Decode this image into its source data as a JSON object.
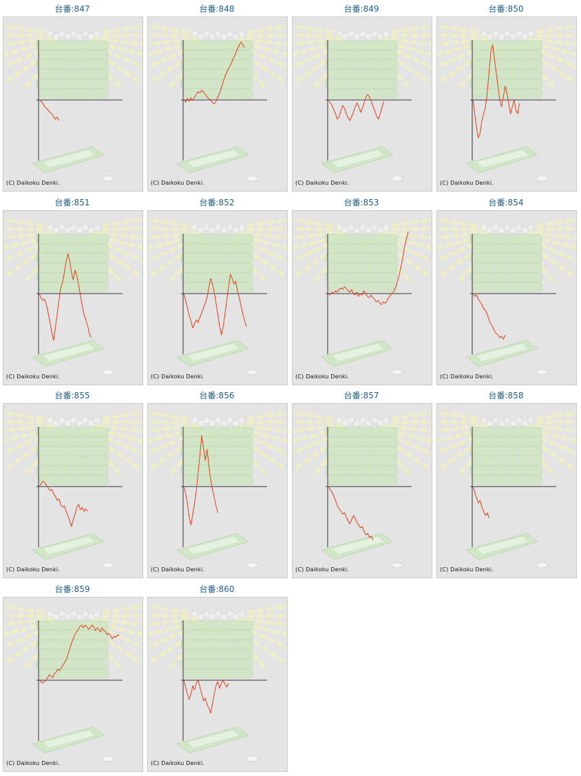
{
  "colors": {
    "title": "#1d5f8c",
    "line": "#e0401a",
    "axis": "#333333",
    "panel_bg": "#e4e4e4",
    "rays": "#f2f0c0",
    "machine": "#cfe6c4"
  },
  "copyright": "(C) Daikoku Denki.",
  "chart_data": [
    {
      "type": "line",
      "title": "台番:847",
      "y": [
        0,
        -2,
        -5,
        -10,
        -12,
        -15,
        -18,
        -20,
        -24,
        -28,
        -25,
        -30
      ]
    },
    {
      "type": "line",
      "title": "台番:848",
      "y": [
        0,
        -3,
        2,
        -2,
        3,
        -1,
        4,
        8,
        12,
        10,
        14,
        12,
        8,
        4,
        2,
        -1,
        -4,
        -6,
        -2,
        4,
        10,
        18,
        26,
        34,
        40,
        46,
        50,
        56,
        62,
        68,
        74,
        80,
        84,
        80,
        76
      ]
    },
    {
      "type": "line",
      "title": "台番:849",
      "y": [
        0,
        -4,
        -8,
        -14,
        -20,
        -28,
        -24,
        -16,
        -8,
        -12,
        -20,
        -26,
        -30,
        -24,
        -18,
        -10,
        -4,
        -10,
        -18,
        -12,
        -4,
        4,
        8,
        4,
        -2,
        -10,
        -16,
        -24,
        -28,
        -20,
        -10,
        -2
      ]
    },
    {
      "type": "line",
      "title": "台番:850",
      "y": [
        0,
        -20,
        -40,
        -55,
        -48,
        -30,
        -20,
        -10,
        10,
        40,
        70,
        80,
        60,
        40,
        20,
        0,
        -10,
        5,
        20,
        10,
        -5,
        -20,
        -10,
        0,
        -15,
        -20,
        -5
      ]
    },
    {
      "type": "line",
      "title": "台番:851",
      "y": [
        0,
        -6,
        -10,
        -8,
        -16,
        -28,
        -42,
        -56,
        -68,
        -50,
        -30,
        -10,
        8,
        16,
        30,
        46,
        58,
        48,
        30,
        20,
        34,
        26,
        12,
        -2,
        -18,
        -30,
        -38,
        -46,
        -58,
        -64
      ]
    },
    {
      "type": "line",
      "title": "台番:852",
      "y": [
        0,
        -10,
        -20,
        -32,
        -40,
        -50,
        -44,
        -38,
        -42,
        -34,
        -28,
        -20,
        -14,
        -6,
        10,
        22,
        14,
        2,
        -14,
        -30,
        -48,
        -60,
        -48,
        -30,
        -10,
        10,
        28,
        22,
        14,
        18,
        4,
        -6,
        -18,
        -30,
        -40,
        -48
      ]
    },
    {
      "type": "line",
      "title": "台番:853",
      "y": [
        0,
        -2,
        2,
        0,
        4,
        2,
        6,
        8,
        6,
        10,
        8,
        4,
        2,
        6,
        0,
        -2,
        2,
        -4,
        0,
        -2,
        4,
        0,
        -4,
        -6,
        -2,
        -6,
        -8,
        -12,
        -10,
        -14,
        -16,
        -12,
        -14,
        -10,
        -6,
        -2,
        0,
        4,
        10,
        18,
        28,
        40,
        54,
        68,
        80,
        90
      ]
    },
    {
      "type": "line",
      "title": "台番:854",
      "y": [
        0,
        -4,
        -2,
        -8,
        -12,
        -16,
        -22,
        -24,
        -30,
        -38,
        -44,
        -48,
        -54,
        -58,
        -60,
        -64,
        -62,
        -66,
        -60
      ]
    },
    {
      "type": "line",
      "title": "台番:855",
      "y": [
        0,
        4,
        8,
        6,
        2,
        -2,
        -6,
        -4,
        -10,
        -14,
        -20,
        -18,
        -26,
        -30,
        -28,
        -36,
        -42,
        -50,
        -58,
        -48,
        -40,
        -30,
        -26,
        -34,
        -30,
        -36,
        -32,
        -36
      ]
    },
    {
      "type": "line",
      "title": "台番:856",
      "y": [
        0,
        -10,
        -24,
        -44,
        -56,
        -40,
        -24,
        -6,
        20,
        46,
        74,
        56,
        38,
        54,
        30,
        10,
        -4,
        -16,
        -28,
        -38
      ]
    },
    {
      "type": "line",
      "title": "台番:857",
      "y": [
        0,
        -4,
        -8,
        -14,
        -20,
        -28,
        -32,
        -36,
        -40,
        -38,
        -44,
        -50,
        -54,
        -48,
        -42,
        -46,
        -52,
        -56,
        -60,
        -58,
        -66,
        -70,
        -68,
        -74,
        -72,
        -78
      ]
    },
    {
      "type": "line",
      "title": "台番:858",
      "y": [
        0,
        -8,
        -16,
        -24,
        -20,
        -30,
        -36,
        -42,
        -38,
        -46
      ]
    },
    {
      "type": "line",
      "title": "台番:859",
      "y": [
        0,
        -2,
        -4,
        -2,
        0,
        4,
        8,
        6,
        4,
        10,
        12,
        16,
        14,
        18,
        22,
        26,
        30,
        38,
        46,
        54,
        60,
        66,
        70,
        74,
        78,
        80,
        76,
        80,
        78,
        74,
        76,
        80,
        78,
        72,
        76,
        74,
        70,
        76,
        72,
        70,
        66,
        68,
        64,
        60,
        64,
        62,
        66,
        64
      ]
    },
    {
      "type": "line",
      "title": "台番:860",
      "y": [
        0,
        -10,
        -20,
        -28,
        -20,
        -8,
        -14,
        -4,
        0,
        -10,
        -20,
        -30,
        -26,
        -36,
        -40,
        -48,
        -34,
        -20,
        -8,
        -2,
        -12,
        -4,
        0,
        -6,
        -10,
        -4
      ]
    }
  ]
}
